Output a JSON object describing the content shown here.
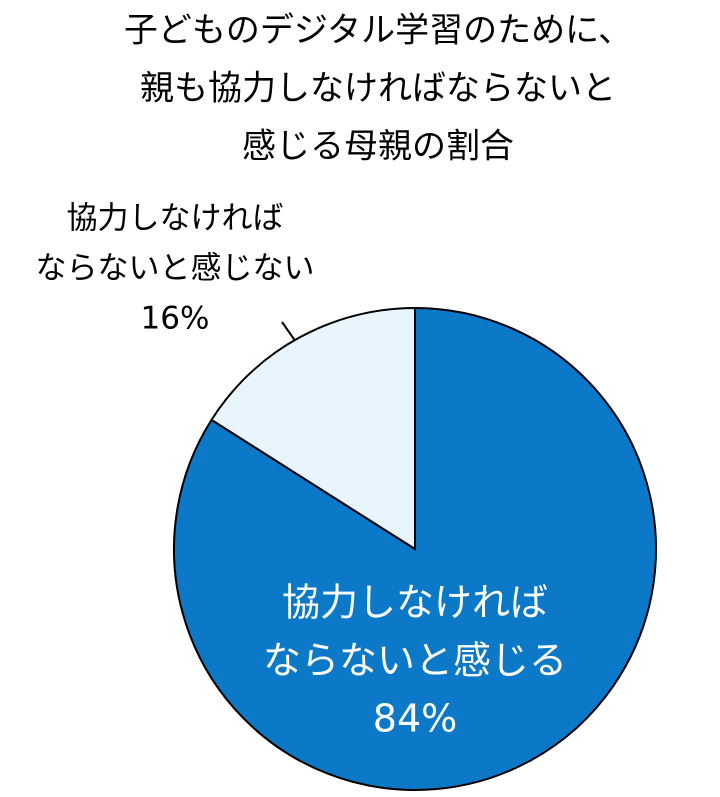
{
  "chart_data": {
    "type": "pie",
    "title": [
      "子どものデジタル学習のために、",
      "親も協力しなければならないと",
      "感じる母親の割合"
    ],
    "categories": [
      [
        "協力しなければ",
        "ならないと感じる"
      ],
      [
        "協力しなければ",
        "ならないと感じない"
      ]
    ],
    "values": [
      84,
      16
    ],
    "value_labels": [
      "84%",
      "16%"
    ],
    "colors": [
      "#0b78c8",
      "#e9f5fd"
    ]
  }
}
